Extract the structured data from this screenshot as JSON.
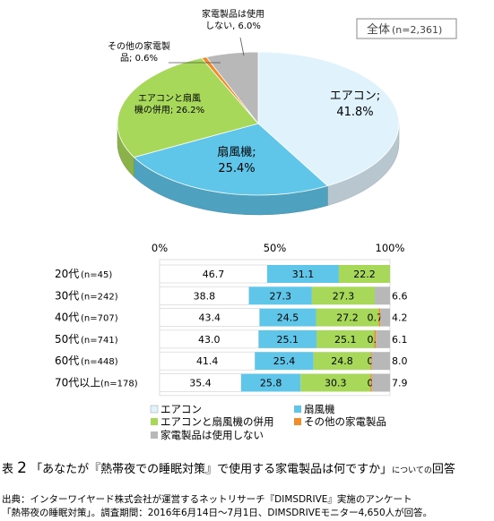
{
  "chart_data": [
    {
      "type": "pie",
      "badge_label": "全体",
      "badge_n": "(n=2,361)",
      "slices": [
        {
          "label_lines": [
            "エアコン;",
            "41.8%"
          ],
          "value": 41.8,
          "color": "#e0f3fd"
        },
        {
          "label_lines": [
            "扇風機;",
            "25.4%"
          ],
          "value": 25.4,
          "color": "#5fc6ea"
        },
        {
          "label_lines": [
            "エアコンと扇風",
            "機の併用; 26.2%"
          ],
          "value": 26.2,
          "color": "#a8d85a"
        },
        {
          "label_lines": [
            "その他の家電製",
            "品; 0.6%"
          ],
          "value": 0.6,
          "color": "#f08c2a"
        },
        {
          "label_lines": [
            "家電製品は使用",
            "しない, 6.0%"
          ],
          "value": 6.0,
          "color": "#b8b8b8"
        }
      ]
    },
    {
      "type": "bar",
      "orientation": "horizontal",
      "stacked": true,
      "xlim": [
        0,
        100
      ],
      "xticks": [
        "0%",
        "50%",
        "100%"
      ],
      "categories": [
        {
          "label": "20代",
          "n": "(n=45)"
        },
        {
          "label": "30代",
          "n": "(n=242)"
        },
        {
          "label": "40代",
          "n": "(n=707)"
        },
        {
          "label": "50代",
          "n": "(n=741)"
        },
        {
          "label": "60代",
          "n": "(n=448)"
        },
        {
          "label": "70代以上",
          "n": "(n=178)"
        }
      ],
      "series": [
        {
          "name": "エアコン",
          "color": "#ffffff",
          "values": [
            46.7,
            38.8,
            43.4,
            43.0,
            41.4,
            35.4
          ],
          "labels": [
            "46.7",
            "38.8",
            "43.4",
            "43.0",
            "41.4",
            "35.4"
          ]
        },
        {
          "name": "扇風機",
          "color": "#5fc6ea",
          "values": [
            31.1,
            27.3,
            24.5,
            25.1,
            25.4,
            25.8
          ],
          "labels": [
            "31.1",
            "27.3",
            "24.5",
            "25.1",
            "25.4",
            "25.8"
          ]
        },
        {
          "name": "エアコンと扇風機の併用",
          "color": "#a8d85a",
          "values": [
            22.2,
            27.3,
            27.2,
            25.1,
            24.8,
            30.3
          ],
          "labels": [
            "22.2",
            "27.3",
            "27.2",
            "25.1",
            "24.8",
            "30.3"
          ]
        },
        {
          "name": "その他の家電製品",
          "color": "#f08c2a",
          "values": [
            0,
            0,
            0.7,
            0.7,
            0.4,
            0.6
          ],
          "labels": [
            "",
            "",
            "0.7",
            "0.7",
            "0.4",
            "0.6"
          ]
        },
        {
          "name": "家電製品は使用しない",
          "color": "#b8b8b8",
          "values": [
            0,
            6.6,
            4.2,
            6.1,
            8.0,
            7.9
          ],
          "labels": [
            "",
            "6.6",
            "4.2",
            "6.1",
            "8.0",
            "7.9"
          ]
        }
      ]
    }
  ],
  "caption": {
    "prefix": "表",
    "number": "2",
    "main": "「あなたが『熱帯夜での睡眠対策』で使用する家電製品は何ですか」",
    "small": "についての",
    "tail": "回答"
  },
  "source": {
    "line1": "出典：インターワイヤード株式会社が運営するネットリサーチ『DIMSDRIVE』実施のアンケート",
    "line2": "「熱帯夜の睡眠対策」。調査期間：2016年6月14日～7月1日、DIMSDRIVEモニター4,650人が回答。"
  }
}
